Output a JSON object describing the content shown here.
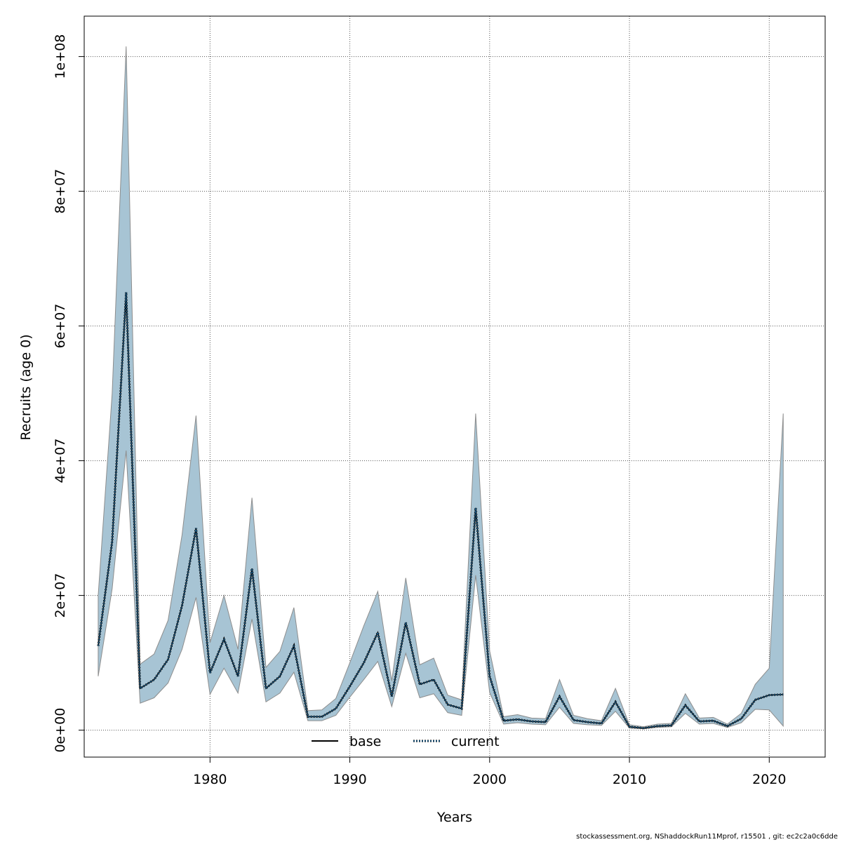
{
  "chart_data": {
    "type": "line",
    "title": "",
    "xlabel": "Years",
    "ylabel": "Recruits (age 0)",
    "xlim": [
      1971,
      2024
    ],
    "ylim": [
      -4000000,
      106000000
    ],
    "x_ticks": [
      1980,
      1990,
      2000,
      2010,
      2020
    ],
    "x_tick_labels": [
      "1980",
      "1990",
      "2000",
      "2010",
      "2020"
    ],
    "y_ticks": [
      0,
      20000000,
      40000000,
      60000000,
      80000000,
      100000000
    ],
    "y_tick_labels": [
      "0e+00",
      "2e+07",
      "4e+07",
      "6e+07",
      "8e+07",
      "1e+08"
    ],
    "grid": true,
    "legend_position": "bottom-center",
    "colors": {
      "band": "#a7c4d4",
      "band_edge": "#8d8d8d",
      "base": "#000000",
      "current_outline": "#000000",
      "current_inner": "#1f77b4"
    },
    "x": [
      1972,
      1973,
      1974,
      1975,
      1976,
      1977,
      1978,
      1979,
      1980,
      1981,
      1982,
      1983,
      1984,
      1985,
      1986,
      1987,
      1988,
      1989,
      1990,
      1991,
      1992,
      1993,
      1994,
      1995,
      1996,
      1997,
      1998,
      1999,
      2000,
      2001,
      2002,
      2003,
      2004,
      2005,
      2006,
      2007,
      2008,
      2009,
      2010,
      2011,
      2012,
      2013,
      2014,
      2015,
      2016,
      2017,
      2018,
      2019,
      2020,
      2021
    ],
    "series": [
      {
        "name": "base",
        "style": "solid",
        "values": [
          12500000,
          28000000,
          65000000,
          6200000,
          7500000,
          10500000,
          18500000,
          30000000,
          8500000,
          13500000,
          8000000,
          24000000,
          6200000,
          8000000,
          12500000,
          2000000,
          2000000,
          3200000,
          6500000,
          10000000,
          14500000,
          5000000,
          16000000,
          6800000,
          7500000,
          3800000,
          3200000,
          33000000,
          8000000,
          1400000,
          1600000,
          1300000,
          1200000,
          5000000,
          1500000,
          1200000,
          1000000,
          4200000,
          500000,
          300000,
          600000,
          700000,
          3700000,
          1300000,
          1400000,
          600000,
          1700000,
          4500000,
          5200000,
          5300000
        ]
      },
      {
        "name": "current",
        "style": "dotted",
        "values": [
          12500000,
          28000000,
          65000000,
          6200000,
          7500000,
          10500000,
          18500000,
          30000000,
          8500000,
          13500000,
          8000000,
          24000000,
          6200000,
          8000000,
          12500000,
          2000000,
          2000000,
          3200000,
          6500000,
          10000000,
          14500000,
          5000000,
          16000000,
          6800000,
          7500000,
          3800000,
          3200000,
          33000000,
          8000000,
          1400000,
          1600000,
          1300000,
          1200000,
          5000000,
          1500000,
          1200000,
          1000000,
          4200000,
          500000,
          300000,
          600000,
          700000,
          3700000,
          1300000,
          1400000,
          600000,
          1700000,
          4500000,
          5200000,
          5300000
        ]
      }
    ],
    "confidence_band": {
      "upper": [
        20000000,
        50000000,
        101500000,
        9800000,
        11300000,
        16300000,
        29000000,
        46700000,
        13000000,
        20000000,
        12000000,
        34500000,
        9300000,
        11700000,
        18200000,
        2900000,
        3000000,
        4700000,
        10000000,
        15500000,
        20600000,
        7300000,
        22600000,
        9700000,
        10700000,
        5200000,
        4500000,
        47000000,
        11800000,
        2000000,
        2300000,
        1800000,
        1700000,
        7500000,
        2200000,
        1700000,
        1400000,
        6200000,
        800000,
        500000,
        900000,
        1000000,
        5400000,
        1800000,
        1900000,
        900000,
        2500000,
        6800000,
        9200000,
        47000000
      ],
      "lower": [
        8000000,
        21000000,
        41500000,
        4000000,
        4800000,
        7000000,
        12000000,
        19700000,
        5300000,
        9200000,
        5500000,
        16500000,
        4200000,
        5500000,
        8600000,
        1400000,
        1400000,
        2200000,
        4900000,
        7500000,
        10200000,
        3500000,
        11400000,
        4800000,
        5400000,
        2600000,
        2200000,
        23000000,
        5600000,
        900000,
        1100000,
        900000,
        800000,
        3400000,
        1000000,
        800000,
        700000,
        2800000,
        300000,
        200000,
        400000,
        500000,
        2500000,
        900000,
        1000000,
        400000,
        1100000,
        3100000,
        3000000,
        600000
      ]
    }
  },
  "footer_text": "stockassessment.org, NShaddockRun11Mprof, r15501 , git: ec2c2a0c6dde"
}
